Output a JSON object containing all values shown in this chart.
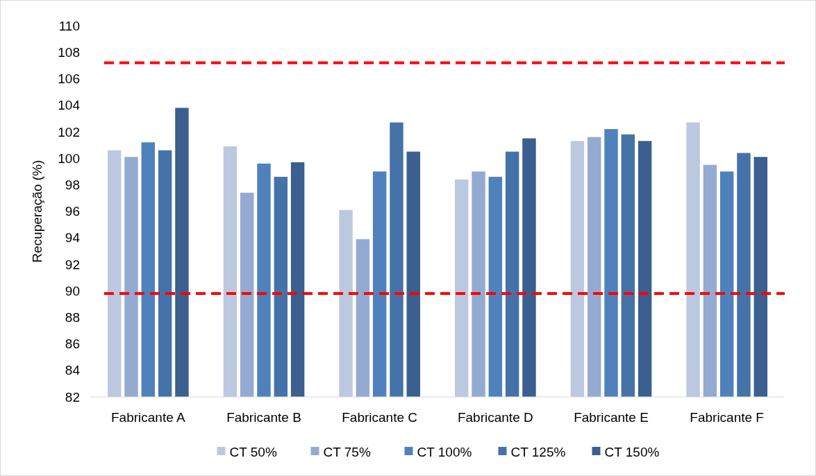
{
  "chart_data": {
    "type": "bar",
    "ylabel": "Recuperação (%)",
    "categories": [
      "Fabricante A",
      "Fabricante B",
      "Fabricante C",
      "Fabricante D",
      "Fabricante E",
      "Fabricante F"
    ],
    "series": [
      {
        "name": "CT 50%",
        "color": "#bcc8e0",
        "values": [
          100.6,
          100.9,
          96.1,
          98.4,
          101.3,
          102.7
        ]
      },
      {
        "name": "CT 75%",
        "color": "#95aad1",
        "values": [
          100.1,
          97.4,
          93.9,
          99.0,
          101.6,
          99.5
        ]
      },
      {
        "name": "CT 100%",
        "color": "#4f81bd",
        "values": [
          101.2,
          99.6,
          99.0,
          98.6,
          102.2,
          99.0
        ]
      },
      {
        "name": "CT 125%",
        "color": "#4573a8",
        "values": [
          100.6,
          98.6,
          102.7,
          100.5,
          101.8,
          100.4
        ]
      },
      {
        "name": "CT 150%",
        "color": "#3b5f8e",
        "values": [
          103.8,
          99.7,
          100.5,
          101.5,
          101.3,
          100.1
        ]
      }
    ],
    "ylim": [
      82,
      110
    ],
    "yticks": [
      82,
      84,
      86,
      88,
      90,
      92,
      94,
      96,
      98,
      100,
      102,
      104,
      106,
      108,
      110
    ],
    "ref_lines": [
      {
        "axis": "y",
        "value": 107.2,
        "color": "#ff0000",
        "line_style": "dashed"
      },
      {
        "axis": "y",
        "value": 89.8,
        "color": "#ff0000",
        "line_style": "dashed"
      }
    ],
    "legend": "bottom",
    "grid": false
  }
}
